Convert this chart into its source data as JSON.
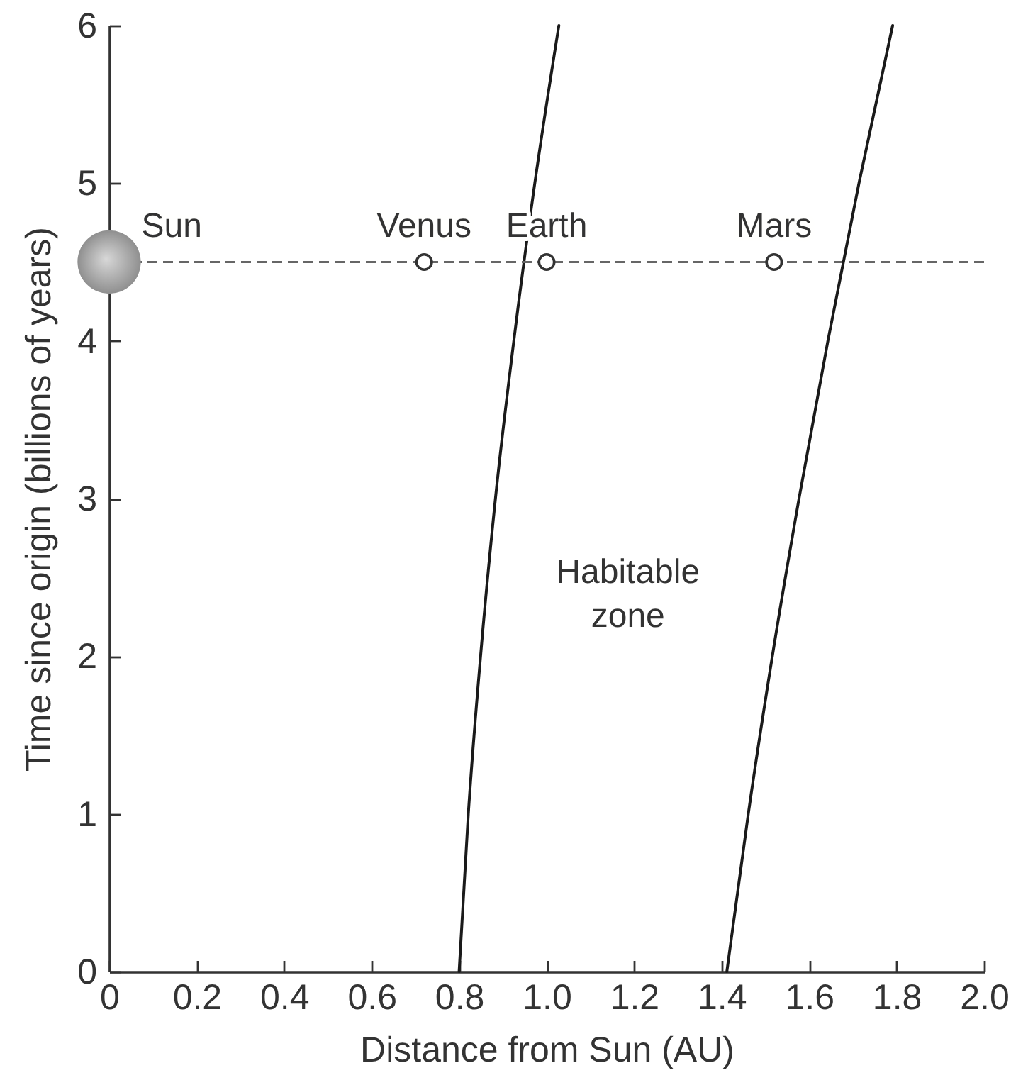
{
  "chart_data": {
    "type": "line",
    "xlabel": "Distance from Sun (AU)",
    "ylabel": "Time since origin (billions of years)",
    "xlim": [
      0,
      2
    ],
    "xticks": [
      0,
      0.2,
      0.4,
      0.6,
      0.8,
      {
        "value": 1,
        "label": "1.0"
      },
      1.2,
      1.4,
      1.6,
      1.8,
      {
        "value": 2,
        "label": "2.0"
      }
    ],
    "ylim": [
      0,
      6
    ],
    "yticks": [
      0,
      1,
      2,
      3,
      4,
      5,
      6
    ],
    "ref_lines": [
      {
        "axis": "y",
        "value": 4.5,
        "color": "#666666",
        "line_style": "dashed"
      }
    ],
    "series": [
      {
        "x": [
          0.8,
          0.821,
          0.849,
          0.883,
          0.925,
          0.973,
          1.028
        ],
        "values": [
          0,
          1,
          2,
          3,
          4,
          5,
          6
        ],
        "color": "#1a1a1a"
      },
      {
        "x": [
          1.412,
          1.461,
          1.516,
          1.577,
          1.643,
          1.714,
          1.791
        ],
        "values": [
          0,
          1,
          2,
          3,
          4,
          5,
          6
        ],
        "color": "#1a1a1a"
      },
      {
        "type": "bubble",
        "name": "Sun",
        "x": [
          0
        ],
        "values": [
          4.5
        ],
        "sizes": [
          1
        ],
        "color": "#8f8f8f"
      },
      {
        "type": "scatter",
        "name": "Venus",
        "x": [
          0.72
        ],
        "values": [
          4.5
        ],
        "color": "#333333",
        "marker": "circle"
      },
      {
        "type": "scatter",
        "name": "Earth",
        "x": [
          1.0
        ],
        "values": [
          4.5
        ],
        "color": "#333333",
        "marker": "circle"
      },
      {
        "type": "scatter",
        "name": "Mars",
        "x": [
          1.52
        ],
        "values": [
          4.5
        ],
        "color": "#333333",
        "marker": "circle"
      }
    ],
    "annotations": [
      "Habitable zone"
    ]
  }
}
